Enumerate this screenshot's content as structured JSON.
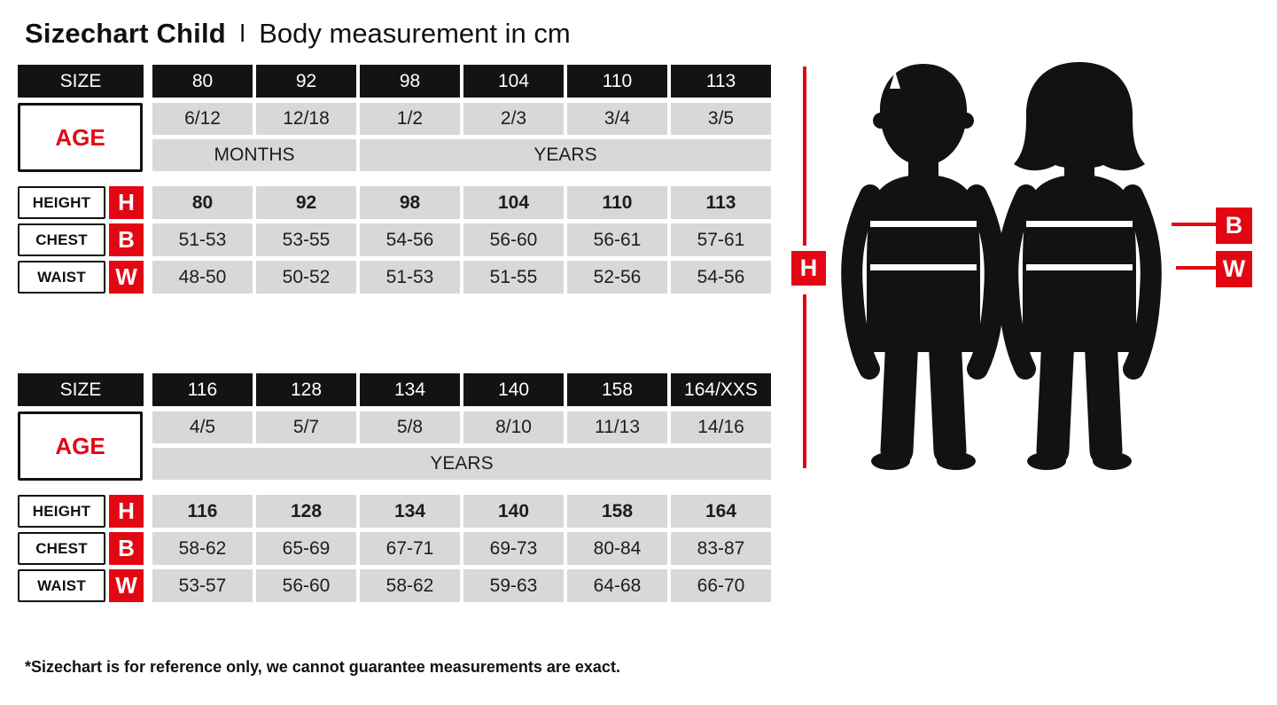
{
  "header": {
    "title_bold": "Sizechart Child",
    "separator": "ǀ",
    "subtitle": "Body measurement in cm"
  },
  "labels": {
    "size": "SIZE",
    "age": "AGE",
    "height": "HEIGHT",
    "chest": "CHEST",
    "waist": "WAIST",
    "h": "H",
    "b": "B",
    "w": "W"
  },
  "colors": {
    "red": "#e30613",
    "header_black": "#131313",
    "cell_gray": "#d8d8d8",
    "text": "#1d1d1b"
  },
  "chart_data": {
    "type": "table",
    "title": "Sizechart Child | Body measurement in cm",
    "tables": [
      {
        "sizes": [
          "80",
          "92",
          "98",
          "104",
          "110",
          "113"
        ],
        "ages": [
          "6/12",
          "12/18",
          "1/2",
          "2/3",
          "3/4",
          "3/5"
        ],
        "unit_spans": [
          {
            "label": "MONTHS",
            "start": 0,
            "span": 2
          },
          {
            "label": "YEARS",
            "start": 2,
            "span": 4
          }
        ],
        "height": [
          "80",
          "92",
          "98",
          "104",
          "110",
          "113"
        ],
        "chest": [
          "51-53",
          "53-55",
          "54-56",
          "56-60",
          "56-61",
          "57-61"
        ],
        "waist": [
          "48-50",
          "50-52",
          "51-53",
          "51-55",
          "52-56",
          "54-56"
        ]
      },
      {
        "sizes": [
          "116",
          "128",
          "134",
          "140",
          "158",
          "164/XXS"
        ],
        "ages": [
          "4/5",
          "5/7",
          "5/8",
          "8/10",
          "11/13",
          "14/16"
        ],
        "unit_spans": [
          {
            "label": "YEARS",
            "start": 0,
            "span": 6
          }
        ],
        "height": [
          "116",
          "128",
          "134",
          "140",
          "158",
          "164"
        ],
        "chest": [
          "58-62",
          "65-69",
          "67-71",
          "69-73",
          "80-84",
          "83-87"
        ],
        "waist": [
          "53-57",
          "56-60",
          "58-62",
          "59-63",
          "64-68",
          "66-70"
        ]
      }
    ]
  },
  "figure": {
    "h_label": "H",
    "b_label": "B",
    "w_label": "W"
  },
  "footnote": "*Sizechart is for reference only, we cannot guarantee measurements are exact."
}
